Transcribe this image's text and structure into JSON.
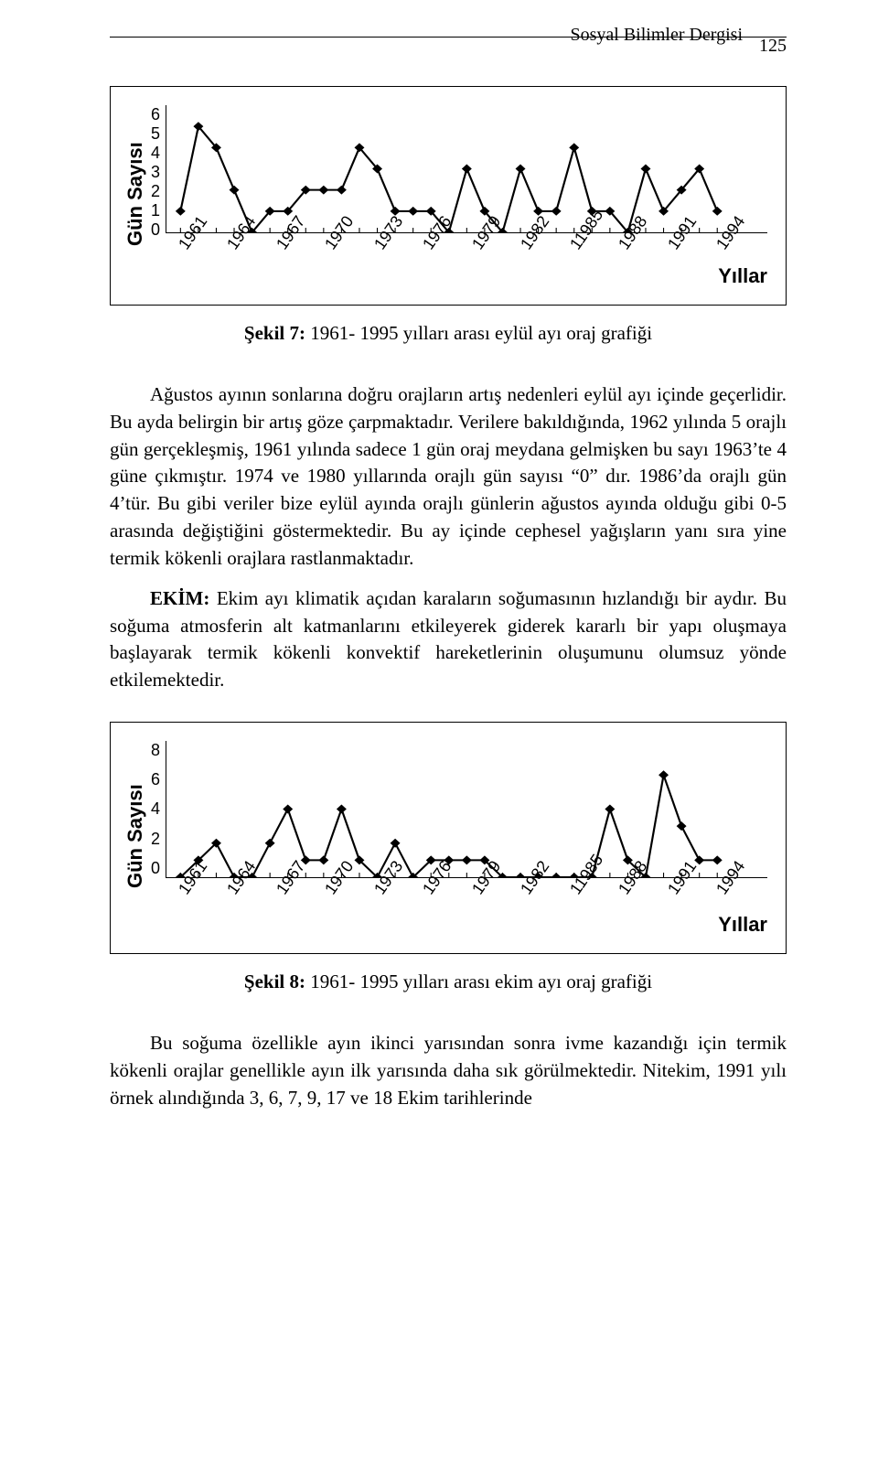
{
  "header": {
    "journal": "Sosyal Bilimler Dergisi",
    "page_number": "125"
  },
  "chart1": {
    "type": "line-marker",
    "ylabel": "Gün Sayısı",
    "xlabel": "Yıllar",
    "yticks": [
      "6",
      "5",
      "4",
      "3",
      "2",
      "1",
      "0"
    ],
    "ylim": [
      0,
      6
    ],
    "xticks": [
      "1961",
      "1964",
      "1967",
      "1970",
      "1973",
      "1976",
      "1979",
      "1982",
      "11985",
      "1988",
      "1991",
      "1994"
    ],
    "series_color": "#000000",
    "marker": "diamond",
    "marker_size": 10,
    "line_width": 2,
    "background": "#ffffff",
    "points_y": [
      1,
      5,
      4,
      2,
      0,
      1,
      1,
      2,
      2,
      2,
      4,
      3,
      1,
      1,
      1,
      0,
      3,
      1,
      0,
      3,
      1,
      1,
      4,
      1,
      1,
      0,
      3,
      1,
      2,
      3,
      1
    ]
  },
  "caption1": {
    "label": "Şekil 7:",
    "text": " 1961- 1995 yılları arası  eylül ayı oraj grafiği"
  },
  "para1": "Ağustos ayının sonlarına doğru orajların artış nedenleri eylül ayı içinde geçerlidir. Bu ayda belirgin bir artış göze çarpmaktadır. Verilere bakıldığında, 1962 yılında 5 orajlı gün gerçekleşmiş, 1961 yılında sadece 1 gün oraj meydana gelmişken bu sayı 1963’te 4 güne çıkmıştır. 1974 ve 1980 yıllarında orajlı gün sayısı “0” dır. 1986’da orajlı gün 4’tür. Bu gibi veriler bize eylül ayında orajlı günlerin ağustos ayında  olduğu gibi 0-5 arasında değiştiğini göstermektedir. Bu ay içinde cephesel yağışların yanı sıra yine termik kökenli orajlara rastlanmaktadır.",
  "para2_label": "EKİM:",
  "para2": " Ekim ayı klimatik açıdan karaların soğumasının hızlandığı bir aydır. Bu soğuma atmosferin alt katmanlarını etkileyerek giderek kararlı bir yapı oluşmaya başlayarak termik kökenli konvektif hareketlerinin oluşumunu olumsuz yönde etkilemektedir.",
  "chart2": {
    "type": "line-marker",
    "ylabel": "Gün Sayısı",
    "xlabel": "Yıllar",
    "yticks": [
      "8",
      "6",
      "4",
      "2",
      "0"
    ],
    "ylim": [
      0,
      8
    ],
    "xticks": [
      "1961",
      "1964",
      "1967",
      "1970",
      "1973",
      "1976",
      "1979",
      "1982",
      "11985",
      "1988",
      "1991",
      "1994"
    ],
    "series_color": "#000000",
    "marker": "diamond",
    "marker_size": 10,
    "line_width": 2,
    "background": "#ffffff",
    "points_y": [
      0,
      1,
      2,
      0,
      0,
      2,
      4,
      1,
      1,
      4,
      1,
      0,
      2,
      0,
      1,
      1,
      1,
      1,
      0,
      0,
      0,
      0,
      0,
      0,
      4,
      1,
      0,
      6,
      3,
      1,
      1
    ]
  },
  "caption2": {
    "label": "Şekil 8:",
    "text": " 1961- 1995 yılları arası  ekim ayı oraj grafiği"
  },
  "para3": "Bu soğuma özellikle ayın ikinci yarısından sonra  ivme kazandığı için termik kökenli orajlar genellikle ayın ilk  yarısında daha sık görülmektedir. Nitekim, 1991 yılı örnek alındığında 3, 6, 7, 9, 17 ve 18 Ekim tarihlerinde"
}
